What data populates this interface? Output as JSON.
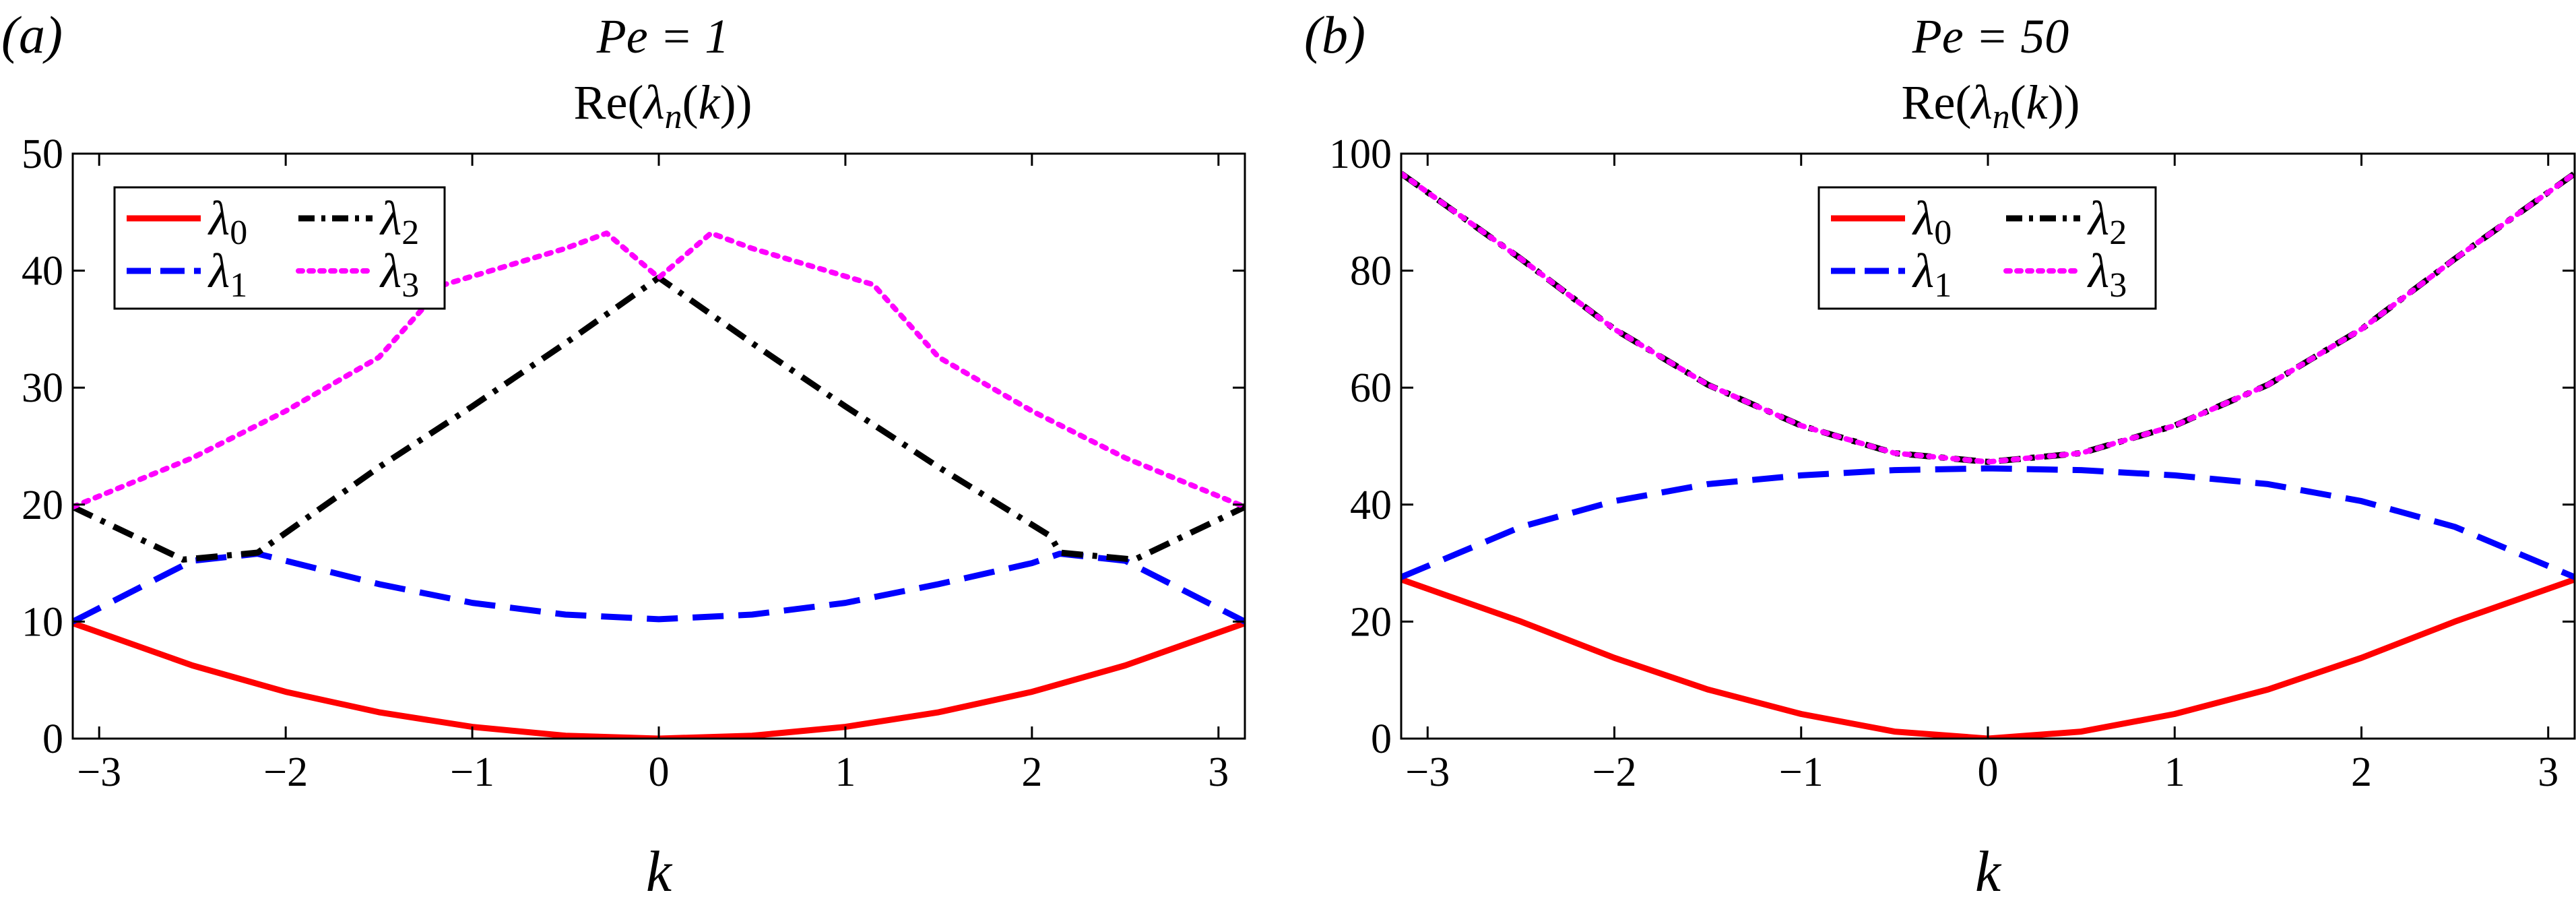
{
  "figure": {
    "panels": [
      {
        "label": "(a)",
        "title_line1": "Pe = 1",
        "title_line2": "Re(λn(k))"
      },
      {
        "label": "(b)",
        "title_line1": "Pe = 50",
        "title_line2": "Re(λn(k))"
      }
    ]
  },
  "chart_data": [
    {
      "type": "line",
      "panel": "a",
      "title": "Pe = 1 Re(λn(k))",
      "xlabel": "k",
      "ylabel": "",
      "xlim": [
        -3.1416,
        3.1416
      ],
      "ylim": [
        0,
        50
      ],
      "xticks": [
        -3,
        -2,
        -1,
        0,
        1,
        2,
        3
      ],
      "yticks": [
        0,
        10,
        20,
        30,
        40,
        50
      ],
      "xtick_labels": [
        "−3",
        "−2",
        "−1",
        "0",
        "1",
        "2",
        "3"
      ],
      "ytick_labels": [
        "0",
        "10",
        "20",
        "30",
        "40",
        "50"
      ],
      "grid": false,
      "legend_placement": "top-left",
      "series": [
        {
          "name": "λ0",
          "color": "#ff0000",
          "style": "solid",
          "x": [
            -3.1416,
            -2.5,
            -2,
            -1.5,
            -1,
            -0.5,
            0,
            0.5,
            1,
            1.5,
            2,
            2.5,
            3.1416
          ],
          "y": [
            9.87,
            6.25,
            4.0,
            2.25,
            1.0,
            0.25,
            0,
            0.25,
            1.0,
            2.25,
            4.0,
            6.25,
            9.87
          ]
        },
        {
          "name": "λ1",
          "color": "#0000ff",
          "style": "dashed",
          "x": [
            -3.1416,
            -2.5,
            -2.15,
            -1.5,
            -1,
            -0.5,
            0,
            0.5,
            1,
            1.5,
            2.0,
            2.15,
            2.5,
            3.1416
          ],
          "y": [
            10.0,
            15.2,
            15.8,
            13.2,
            11.6,
            10.6,
            10.2,
            10.6,
            11.6,
            13.2,
            15.0,
            15.8,
            15.2,
            10.0
          ]
        },
        {
          "name": "λ2",
          "color": "#000000",
          "style": "dashdot",
          "x": [
            -3.1416,
            -2.55,
            -2.15,
            -1.5,
            -1,
            -0.5,
            0,
            0.5,
            1,
            1.5,
            2.1,
            2.15,
            2.55,
            3.1416
          ],
          "y": [
            19.8,
            15.3,
            15.9,
            23.2,
            28.4,
            33.8,
            39.4,
            33.8,
            28.4,
            23.2,
            17.3,
            15.9,
            15.3,
            19.8
          ]
        },
        {
          "name": "λ3",
          "color": "#ff00ff",
          "style": "dotted",
          "x": [
            -3.1416,
            -2.5,
            -2.0,
            -1.5,
            -1.15,
            -0.5,
            -0.28,
            0,
            0.28,
            0.5,
            1.15,
            1.5,
            2.0,
            2.5,
            3.1416
          ],
          "y": [
            19.8,
            24.0,
            28.0,
            32.6,
            38.8,
            41.9,
            43.2,
            39.4,
            43.2,
            41.9,
            38.8,
            32.6,
            28.0,
            24.0,
            19.8
          ]
        }
      ]
    },
    {
      "type": "line",
      "panel": "b",
      "title": "Pe = 50 Re(λn(k))",
      "xlabel": "k",
      "ylabel": "",
      "xlim": [
        -3.1416,
        3.1416
      ],
      "ylim": [
        0,
        100
      ],
      "xticks": [
        -3,
        -2,
        -1,
        0,
        1,
        2,
        3
      ],
      "yticks": [
        0,
        20,
        40,
        60,
        80,
        100
      ],
      "xtick_labels": [
        "−3",
        "−2",
        "−1",
        "0",
        "1",
        "2",
        "3"
      ],
      "ytick_labels": [
        "0",
        "20",
        "40",
        "60",
        "80",
        "100"
      ],
      "grid": false,
      "legend_placement": "top-center",
      "series": [
        {
          "name": "λ0",
          "color": "#ff0000",
          "style": "solid",
          "x": [
            -3.1416,
            -2.5,
            -2,
            -1.5,
            -1,
            -0.5,
            0,
            0.5,
            1,
            1.5,
            2,
            2.5,
            3.1416
          ],
          "y": [
            27.2,
            20.0,
            13.8,
            8.4,
            4.2,
            1.2,
            0,
            1.2,
            4.2,
            8.4,
            13.8,
            20.0,
            27.2
          ]
        },
        {
          "name": "λ1",
          "color": "#0000ff",
          "style": "dashed",
          "x": [
            -3.1416,
            -2.5,
            -2,
            -1.5,
            -1,
            -0.5,
            0,
            0.5,
            1,
            1.5,
            2,
            2.5,
            3.1416
          ],
          "y": [
            27.6,
            36.2,
            40.6,
            43.5,
            45.0,
            45.9,
            46.2,
            45.9,
            45.0,
            43.5,
            40.6,
            36.2,
            27.6
          ]
        },
        {
          "name": "λ2",
          "color": "#000000",
          "style": "dashdot",
          "x": [
            -3.1416,
            -2.5,
            -2,
            -1.5,
            -1,
            -0.5,
            0,
            0.5,
            1,
            1.5,
            2,
            2.5,
            3.1416
          ],
          "y": [
            96.6,
            82.0,
            70.0,
            60.5,
            53.5,
            48.8,
            47.3,
            48.8,
            53.5,
            60.5,
            70.0,
            82.0,
            96.6
          ]
        },
        {
          "name": "λ3",
          "color": "#ff00ff",
          "style": "dotted",
          "x": [
            -3.1416,
            -2.5,
            -2,
            -1.5,
            -1,
            -0.5,
            0,
            0.5,
            1,
            1.5,
            2,
            2.5,
            3.1416
          ],
          "y": [
            96.6,
            82.0,
            70.0,
            60.5,
            53.5,
            48.8,
            47.3,
            48.8,
            53.5,
            60.5,
            70.0,
            82.0,
            96.6
          ]
        }
      ]
    }
  ]
}
